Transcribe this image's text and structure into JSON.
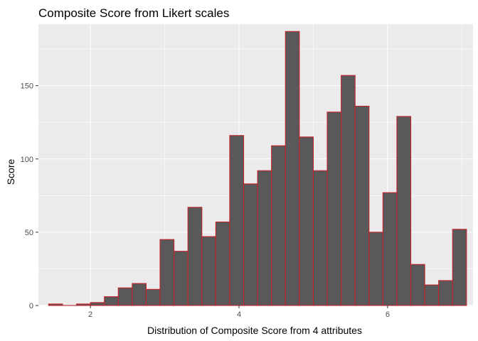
{
  "chart_data": {
    "type": "bar",
    "title": "Composite Score from Likert scales",
    "xlabel": "Distribution of Composite Score from 4 attributes",
    "ylabel": "Score",
    "xlim": [
      1.3,
      7.15
    ],
    "ylim": [
      0,
      192
    ],
    "x_ticks": [
      2,
      4,
      6
    ],
    "y_ticks": [
      0,
      50,
      100,
      150
    ],
    "bin_width": 0.1875,
    "bins_start": 1.4375,
    "values": [
      1,
      0,
      1,
      2,
      6,
      12,
      15,
      11,
      45,
      37,
      67,
      47,
      57,
      116,
      83,
      92,
      109,
      187,
      115,
      92,
      132,
      157,
      136,
      50,
      77,
      129,
      28,
      14,
      17,
      52
    ],
    "grid": true,
    "colors": {
      "panel": "#ebebeb",
      "grid": "#ffffff",
      "bar_fill": "#595959",
      "bar_outline": "#c0242b"
    }
  }
}
